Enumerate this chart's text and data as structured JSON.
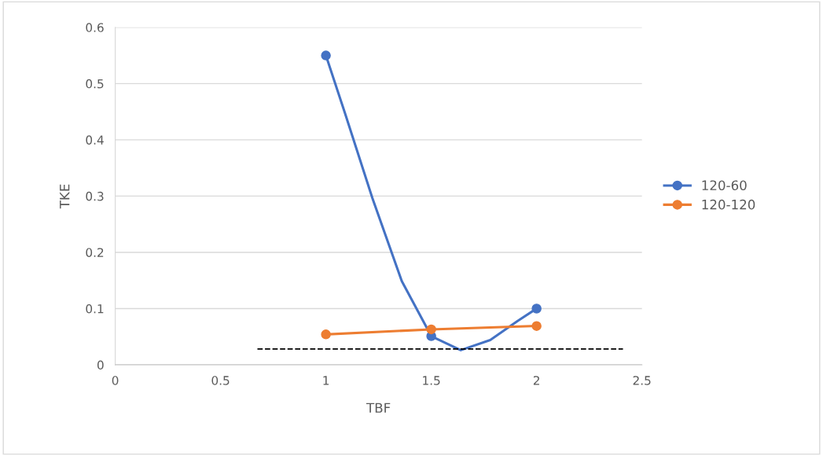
{
  "chart_data": {
    "type": "line",
    "xlabel": "TBF",
    "ylabel": "TKE",
    "xlim": [
      0,
      2.5
    ],
    "xticks": [
      0,
      0.5,
      1,
      1.5,
      2,
      2.5
    ],
    "ylim": [
      0,
      0.6
    ],
    "yticks": [
      0,
      0.1,
      0.2,
      0.3,
      0.4,
      0.5,
      0.6
    ],
    "series": [
      {
        "name": "120-60",
        "color": "#4472c4",
        "x": [
          1,
          1.09,
          1.22,
          1.36,
          1.5,
          1.64,
          1.78,
          1.91,
          2
        ],
        "values": [
          0.55,
          0.448,
          0.297,
          0.149,
          0.051,
          0.026,
          0.044,
          0.078,
          0.1
        ],
        "marker": "none"
      },
      {
        "type": "scatter",
        "color": "#4472c4",
        "x": [
          1,
          1.5,
          2
        ],
        "values": [
          0.55,
          0.051,
          0.1
        ],
        "marker": "circle"
      },
      {
        "name": "120-120",
        "color": "#ed7d31",
        "x": [
          1,
          1.5,
          2
        ],
        "values": [
          0.054,
          0.063,
          0.069
        ],
        "marker": "circle"
      },
      {
        "color": "#000000",
        "x": [
          0.675,
          2.41
        ],
        "values": [
          0.028,
          0.028
        ],
        "line_style": "dashed",
        "marker": "none"
      }
    ],
    "grid": "y",
    "legend": "right"
  }
}
